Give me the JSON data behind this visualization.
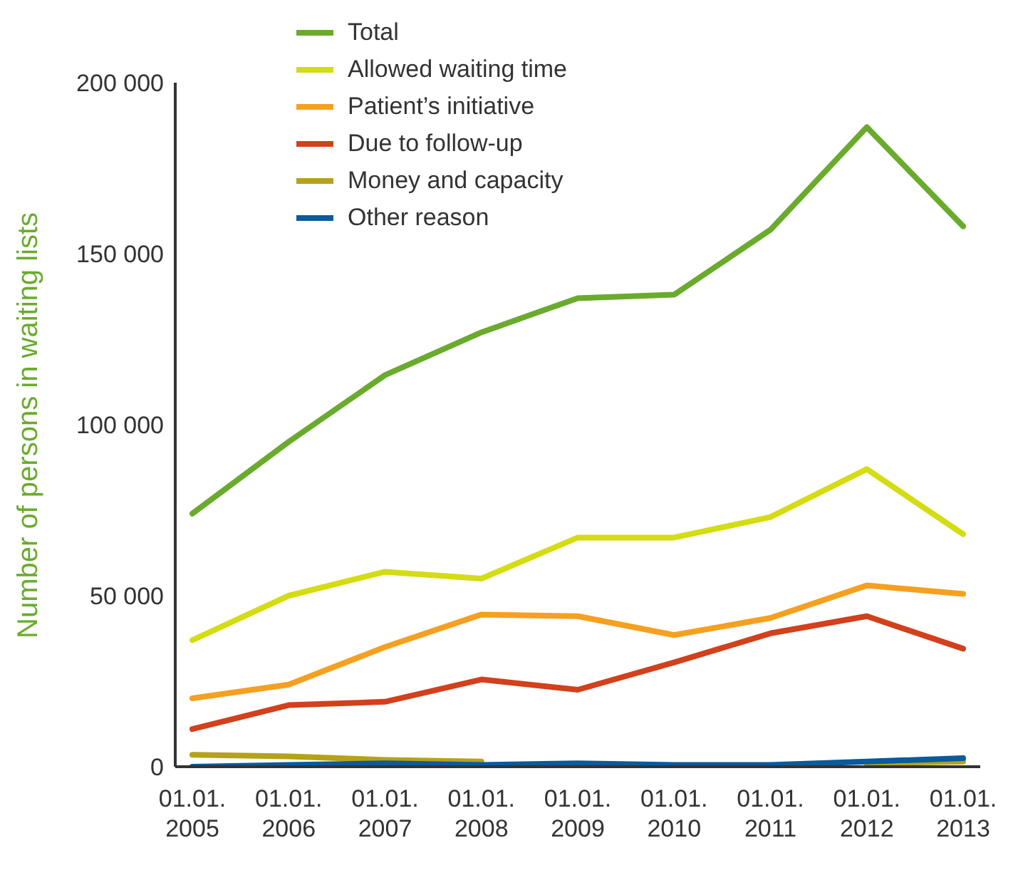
{
  "chart_data": {
    "type": "line",
    "ylabel": "Number of persons in waiting lists",
    "categories": [
      "01.01. 2005",
      "01.01. 2006",
      "01.01. 2007",
      "01.01. 2008",
      "01.01. 2009",
      "01.01. 2010",
      "01.01. 2011",
      "01.01. 2012",
      "01.01. 2013"
    ],
    "series": [
      {
        "name": "Total",
        "color": "#6aab2e",
        "values": [
          74000,
          95000,
          114500,
          127000,
          137000,
          138000,
          157000,
          187000,
          158000
        ]
      },
      {
        "name": "Allowed waiting time",
        "color": "#d4dc12",
        "values": [
          37000,
          50000,
          57000,
          55000,
          67000,
          67000,
          73000,
          87000,
          68000
        ]
      },
      {
        "name": "Patient’s initiative",
        "color": "#f5a020",
        "values": [
          20000,
          24000,
          35000,
          44500,
          44000,
          38500,
          43500,
          53000,
          50500
        ]
      },
      {
        "name": "Due to follow-up",
        "color": "#d2401c",
        "values": [
          11000,
          18000,
          19000,
          25500,
          22500,
          30500,
          39000,
          44000,
          34500
        ]
      },
      {
        "name": "Money and capacity",
        "color": "#b5a21a",
        "values": [
          3500,
          3000,
          2000,
          1500,
          null,
          null,
          null,
          1000,
          1500
        ]
      },
      {
        "name": "Other reason",
        "color": "#0b5a9c",
        "values": [
          0,
          500,
          1000,
          500,
          1000,
          500,
          500,
          1500,
          2500
        ]
      }
    ],
    "ylim": [
      0,
      200000
    ],
    "yticks": [
      {
        "value": 0,
        "label": "0"
      },
      {
        "value": 50000,
        "label": "50 000"
      },
      {
        "value": 100000,
        "label": "100 000"
      },
      {
        "value": 150000,
        "label": "150 000"
      },
      {
        "value": 200000,
        "label": "200 000"
      }
    ],
    "grid": false,
    "legend": "top left",
    "marker": "none",
    "line_style": "solid"
  }
}
